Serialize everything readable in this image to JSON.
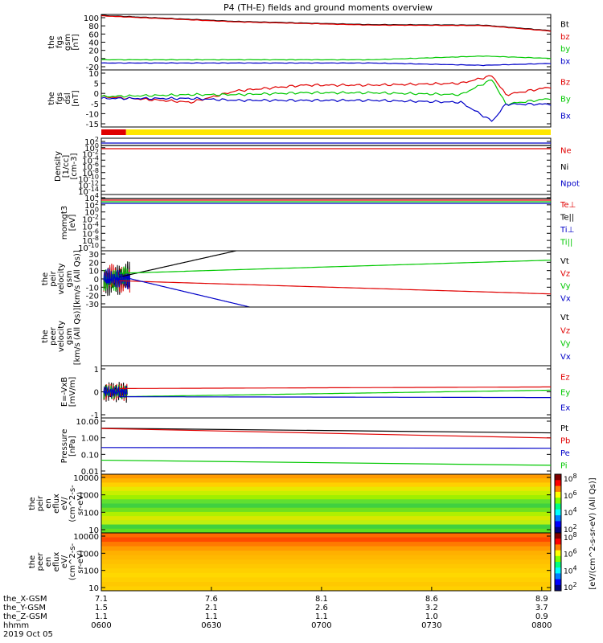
{
  "title": "P4 (TH-E) fields and ground moments overview",
  "colors": {
    "black": "#000000",
    "red": "#e00000",
    "green": "#00c800",
    "blue": "#0000c8",
    "yellow": "#ffe600"
  },
  "chart_data": [
    {
      "type": "line",
      "panel": "fgs_gsm",
      "ylabel": [
        "the",
        "fgs",
        "gsm",
        "[nT]"
      ],
      "ylim": [
        -20,
        100
      ],
      "yticks": [
        "100",
        "80",
        "60",
        "40",
        "20",
        "0",
        "-20"
      ],
      "legend": [
        "Bt",
        "bz",
        "by",
        "bx"
      ],
      "series": [
        {
          "name": "Bt",
          "color": "black",
          "x": [
            0,
            0.3,
            0.6,
            0.85,
            1
          ],
          "y": [
            98,
            85,
            78,
            77,
            65
          ]
        },
        {
          "name": "bz",
          "color": "red",
          "x": [
            0,
            0.3,
            0.6,
            0.85,
            1
          ],
          "y": [
            97,
            84,
            77,
            76,
            64
          ]
        },
        {
          "name": "by",
          "color": "green",
          "x": [
            0,
            0.6,
            0.85,
            1
          ],
          "y": [
            2,
            2,
            10,
            5
          ]
        },
        {
          "name": "bx",
          "color": "blue",
          "x": [
            0,
            0.6,
            0.85,
            1
          ],
          "y": [
            -5,
            -5,
            -10,
            -6
          ]
        }
      ]
    },
    {
      "type": "line",
      "panel": "fgs_dsl",
      "ylabel": [
        "the",
        "fgs",
        "dsl",
        "[nT]"
      ],
      "ylim": [
        -17,
        13
      ],
      "yticks": [
        "10",
        "5",
        "0",
        "-5",
        "-10",
        "-15"
      ],
      "legend": [
        "Bz",
        "By",
        "Bx"
      ],
      "series": [
        {
          "name": "Bz",
          "color": "red",
          "x": [
            0,
            0.2,
            0.3,
            0.45,
            0.6,
            0.8,
            0.87,
            0.9,
            1
          ],
          "y": [
            -1,
            -4,
            2,
            5,
            5,
            6,
            10,
            0,
            4
          ]
        },
        {
          "name": "By",
          "color": "green",
          "x": [
            0,
            0.2,
            0.3,
            0.45,
            0.6,
            0.8,
            0.87,
            0.9,
            1
          ],
          "y": [
            -1,
            0,
            0,
            1,
            1,
            0,
            8,
            -5,
            -2
          ]
        },
        {
          "name": "Bx",
          "color": "blue",
          "x": [
            0,
            0.2,
            0.3,
            0.45,
            0.6,
            0.8,
            0.87,
            0.9,
            1
          ],
          "y": [
            -2,
            -2,
            -3,
            -3,
            -3,
            -4,
            -14,
            -5,
            -5
          ]
        }
      ]
    },
    {
      "type": "area",
      "panel": "state_bar",
      "colors": [
        "red",
        "yellow"
      ],
      "x": [
        0,
        0.055,
        1
      ]
    },
    {
      "type": "line",
      "panel": "density",
      "ylabel": [
        "Density",
        "[1/cc]",
        "[cm-3]"
      ],
      "ylim": [
        "1e-14",
        "1e2"
      ],
      "yticks": [
        "10^2",
        "10^0",
        "10^-2",
        "10^-4",
        "10^-6",
        "10^-8",
        "10^-10",
        "10^-12",
        "10^-14"
      ],
      "legend": [
        "Ne",
        "Ni",
        "Npot"
      ],
      "series": [
        {
          "name": "Ne",
          "color": "red",
          "y": 0.3
        },
        {
          "name": "Ni",
          "color": "black",
          "y": 0.5
        },
        {
          "name": "Npot",
          "color": "blue",
          "y": 1
        }
      ]
    },
    {
      "type": "line",
      "panel": "moms",
      "ylabel": [
        "momgt3",
        "[eV]"
      ],
      "ylim": [
        "1e-10",
        "1e4"
      ],
      "yticks": [
        "10^4",
        "10^2",
        "10^0",
        "10^-2",
        "10^-4",
        "10^-6",
        "10^-8",
        "10^-10"
      ],
      "legend": [
        "Te⊥",
        "Te||",
        "Ti⊥",
        "Ti||"
      ],
      "series": [
        {
          "name": "Te⊥",
          "color": "red"
        },
        {
          "name": "Te||",
          "color": "black"
        },
        {
          "name": "Ti⊥",
          "color": "blue"
        },
        {
          "name": "Ti||",
          "color": "green"
        }
      ]
    },
    {
      "type": "line",
      "panel": "peir_velocity",
      "ylabel": [
        "the",
        "peir",
        "velocity",
        "gsm",
        "[km/s (All Qs)]"
      ],
      "ylim": [
        -30,
        30
      ],
      "yticks": [
        "30",
        "20",
        "10",
        "0",
        "-10",
        "-20",
        "-30"
      ],
      "legend": [
        "Vt",
        "Vz",
        "Vy",
        "Vx"
      ],
      "series": [
        {
          "name": "Vt",
          "color": "black",
          "x": [
            0.04,
            0.3
          ],
          "y": [
            2,
            30
          ]
        },
        {
          "name": "Vz",
          "color": "red",
          "x": [
            0.04,
            1
          ],
          "y": [
            -2,
            -16
          ]
        },
        {
          "name": "Vy",
          "color": "green",
          "x": [
            0.04,
            1
          ],
          "y": [
            6,
            20
          ]
        },
        {
          "name": "Vx",
          "color": "blue",
          "x": [
            0.04,
            0.33
          ],
          "y": [
            3,
            -30
          ]
        }
      ]
    },
    {
      "type": "line",
      "panel": "peer_velocity",
      "ylabel": [
        "the",
        "peer",
        "velocity",
        "gsm",
        "[km/s (All Qs)]"
      ],
      "legend": [
        "Vt",
        "Vz",
        "Vy",
        "Vx"
      ]
    },
    {
      "type": "line",
      "panel": "efield",
      "ylabel": [
        "E=-VxB",
        "[mV/m]"
      ],
      "ylim": [
        -1.6,
        1.6
      ],
      "yticks": [
        "1",
        "0",
        "-1"
      ],
      "legend": [
        "Ez",
        "Ey",
        "Ex"
      ],
      "series": [
        {
          "name": "Ez",
          "color": "red",
          "x": [
            0.04,
            1
          ],
          "y": [
            0.2,
            0.3
          ]
        },
        {
          "name": "Ey",
          "color": "green",
          "x": [
            0.04,
            1
          ],
          "y": [
            -0.3,
            0.1
          ]
        },
        {
          "name": "Ex",
          "color": "blue",
          "x": [
            0.04,
            1
          ],
          "y": [
            -0.3,
            -0.35
          ]
        }
      ]
    },
    {
      "type": "line",
      "panel": "pressure",
      "ylabel": [
        "Pressure",
        "[nPa]"
      ],
      "ylim": [
        "0.006",
        "12"
      ],
      "yticks": [
        "10.00",
        "1.00",
        "0.10",
        "0.01"
      ],
      "legend": [
        "Pt",
        "Pb",
        "Pe",
        "Pi"
      ],
      "series": [
        {
          "name": "Pt",
          "color": "black",
          "x": [
            0,
            1
          ],
          "y": [
            3,
            1.6
          ]
        },
        {
          "name": "Pb",
          "color": "red",
          "x": [
            0,
            1
          ],
          "y": [
            2.9,
            0.8
          ]
        },
        {
          "name": "Pe",
          "color": "blue",
          "x": [
            0,
            1
          ],
          "y": [
            0.22,
            0.2
          ]
        },
        {
          "name": "Pi",
          "color": "green",
          "x": [
            0,
            1
          ],
          "y": [
            0.04,
            0.02
          ]
        }
      ]
    },
    {
      "type": "heatmap",
      "panel": "peir_eflux",
      "ylabel": [
        "the",
        "peir",
        "en",
        "eflux",
        "eV/",
        "(cm^2-s-",
        "sr-eV)"
      ],
      "yticks": [
        "10000",
        "1000",
        "100",
        "10"
      ],
      "colorbar_label": "[eV/(cm^2-s-sr-eV) (All Qs)]",
      "colorbar_ticks": [
        "10^8",
        "10^6",
        "10^4",
        "10^2"
      ]
    },
    {
      "type": "heatmap",
      "panel": "peer_eflux",
      "ylabel": [
        "the",
        "peer",
        "en",
        "eflux",
        "eV/",
        "(cm^2-s-",
        "sr-eV)"
      ],
      "yticks": [
        "10000",
        "1000",
        "100",
        "10"
      ],
      "colorbar_label": "[eV/(cm^2-s-sr-eV) (All Qs)]",
      "colorbar_ticks": [
        "10^8",
        "10^6",
        "10^4",
        "10^2"
      ]
    }
  ],
  "xaxis": {
    "rows": [
      {
        "label": "the_X-GSM",
        "values": [
          "7.1",
          "7.6",
          "8.1",
          "8.6",
          "8.9"
        ]
      },
      {
        "label": "the_Y-GSM",
        "values": [
          "1.5",
          "2.1",
          "2.6",
          "3.2",
          "3.7"
        ]
      },
      {
        "label": "the_Z-GSM",
        "values": [
          "1.1",
          "1.1",
          "1.1",
          "1.0",
          "0.9"
        ]
      },
      {
        "label": "hhmm",
        "values": [
          "0600",
          "0630",
          "0700",
          "0730",
          "0800"
        ]
      }
    ],
    "date": "2019 Oct 05"
  }
}
